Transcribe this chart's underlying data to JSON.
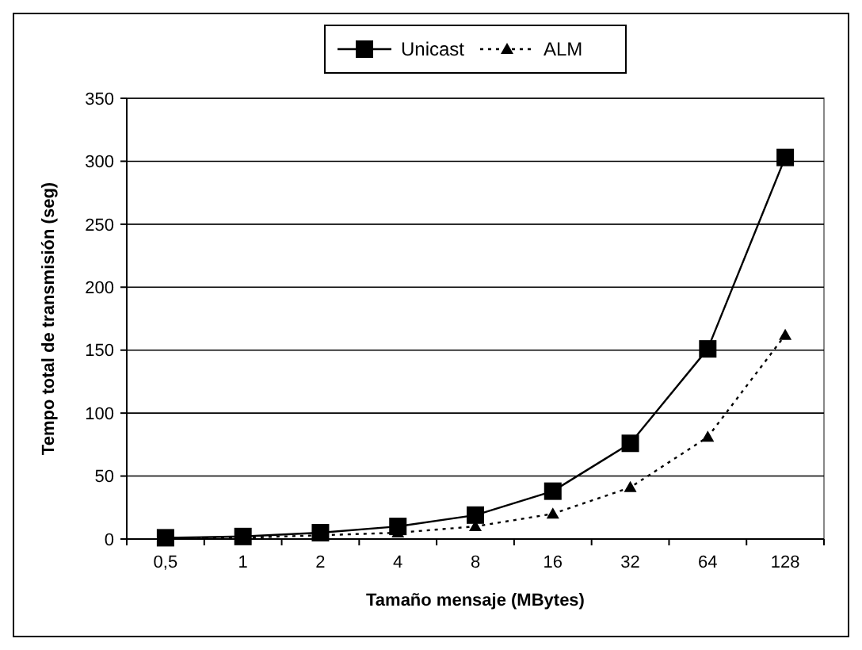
{
  "chart_data": {
    "type": "line",
    "xlabel": "Tamaño mensaje (MBytes)",
    "ylabel": "Tempo total de transmisión (seg)",
    "categories": [
      "0,5",
      "1",
      "2",
      "4",
      "8",
      "16",
      "32",
      "64",
      "128"
    ],
    "series": [
      {
        "name": "Unicast",
        "color": "#000000",
        "marker": "square",
        "line_style": "solid",
        "values": [
          1,
          2,
          5,
          10,
          19,
          38,
          76,
          151,
          303
        ]
      },
      {
        "name": "ALM",
        "color": "#000000",
        "marker": "triangle",
        "line_style": "dotted",
        "values": [
          1,
          1,
          3,
          5,
          10,
          20,
          41,
          81,
          162
        ]
      }
    ],
    "ylim": [
      0,
      350
    ],
    "yticks": [
      0,
      50,
      100,
      150,
      200,
      250,
      300,
      350
    ],
    "grid": "y",
    "legend": "top"
  }
}
